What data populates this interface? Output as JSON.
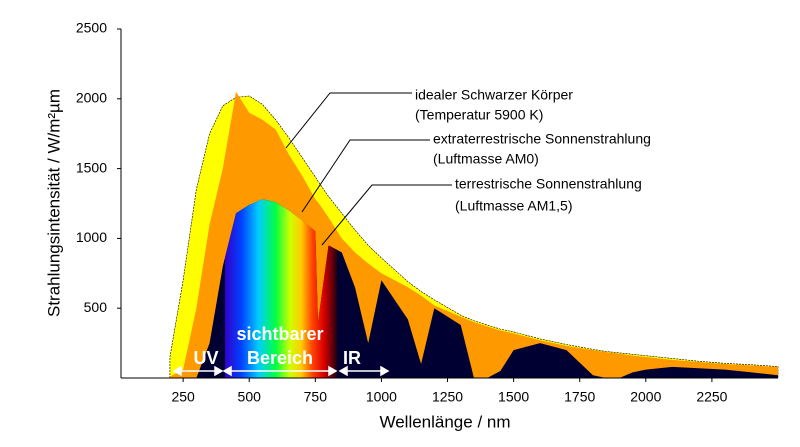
{
  "chart_data": {
    "type": "area",
    "x_label": "Wellenlänge  /  nm",
    "y_label": "Strahlungsintensität  /  W/m²µm",
    "x": [
      200,
      250,
      300,
      350,
      400,
      450,
      500,
      550,
      600,
      650,
      700,
      750,
      760,
      800,
      850,
      900,
      950,
      1000,
      1100,
      1150,
      1200,
      1300,
      1350,
      1400,
      1450,
      1500,
      1600,
      1700,
      1800,
      1850,
      1900,
      1950,
      2000,
      2100,
      2200,
      2300,
      2400,
      2500
    ],
    "series": [
      {
        "name": "idealer Schwarzer Körper",
        "note": "(Temperatur 5900 K)",
        "color": "#ffff00",
        "values": [
          150,
          700,
          1350,
          1750,
          1950,
          2010,
          2020,
          1960,
          1850,
          1720,
          1580,
          1440,
          1410,
          1300,
          1180,
          1060,
          950,
          860,
          690,
          620,
          560,
          450,
          410,
          380,
          350,
          330,
          280,
          240,
          205,
          190,
          180,
          170,
          160,
          140,
          120,
          105,
          95,
          82
        ]
      },
      {
        "name": "extraterrestrische Sonnenstrahlung",
        "note": "(Luftmasse AM0)",
        "color": "#ff9900",
        "values": [
          10,
          60,
          500,
          1100,
          1500,
          2050,
          1900,
          1850,
          1780,
          1600,
          1450,
          1280,
          1260,
          1150,
          1000,
          900,
          820,
          750,
          650,
          590,
          520,
          440,
          400,
          370,
          340,
          320,
          270,
          230,
          200,
          185,
          175,
          160,
          150,
          130,
          115,
          100,
          90,
          80
        ]
      },
      {
        "name": "terrestrische Sonnenstrahlung",
        "note": "(Luftmasse AM1,5)",
        "color": "#000033",
        "values": [
          0,
          0,
          0,
          250,
          800,
          1180,
          1240,
          1280,
          1260,
          1200,
          1130,
          1050,
          400,
          950,
          900,
          650,
          250,
          700,
          420,
          100,
          500,
          380,
          0,
          0,
          50,
          200,
          250,
          200,
          20,
          0,
          0,
          40,
          60,
          80,
          70,
          60,
          40,
          20
        ]
      }
    ],
    "regions": [
      {
        "label": "UV"
      },
      {
        "label": "sichtbarer",
        "label2": "Bereich"
      },
      {
        "label": "IR"
      }
    ],
    "xlim": [
      15,
      2500
    ],
    "ylim": [
      0,
      2500
    ],
    "xticks": [
      250,
      500,
      750,
      1000,
      1250,
      1500,
      1750,
      2000,
      2250
    ],
    "yticks": [
      500,
      1000,
      1500,
      2000,
      2500
    ]
  }
}
